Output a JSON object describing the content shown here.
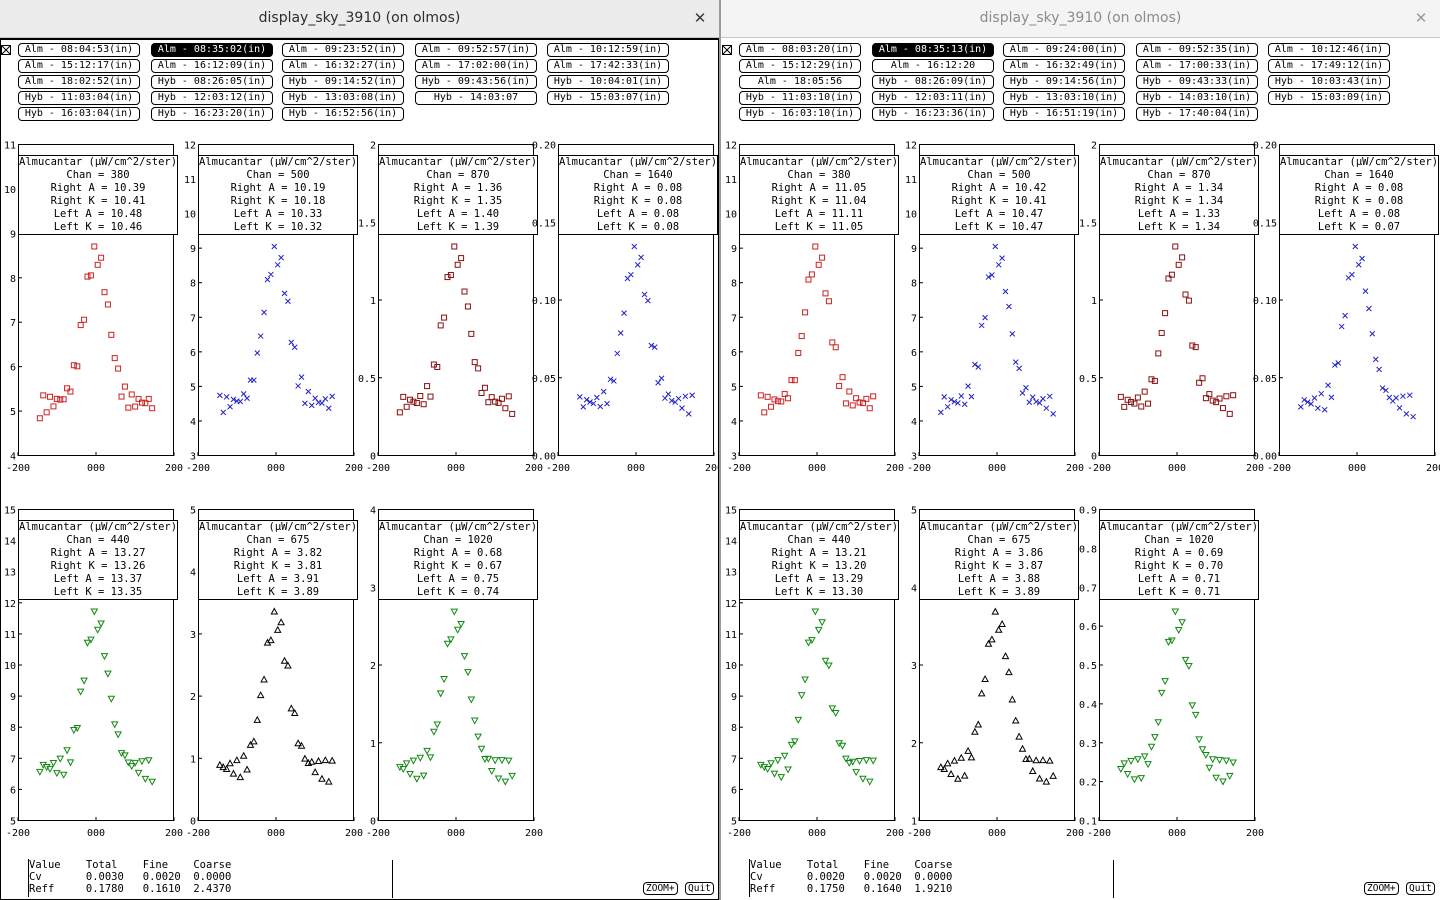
{
  "windows": [
    {
      "id": "left",
      "title": "display_sky_3910 (on olmos)",
      "active": true,
      "buttons": [
        [
          "Alm - 08:04:53(in)",
          "Alm - 08:35:02(in)",
          "Alm - 09:23:52(in)",
          "Alm - 09:52:57(in)",
          "Alm - 10:12:59(in)"
        ],
        [
          "Alm - 15:12:17(in)",
          "Alm - 16:12:09(in)",
          "Alm - 16:32:27(in)",
          "Alm - 17:02:00(in)",
          "Alm - 17:42:33(in)"
        ],
        [
          "Alm - 18:02:52(in)",
          "Hyb - 08:26:05(in)",
          "Hyb - 09:14:52(in)",
          "Hyb - 09:43:56(in)",
          "Hyb - 10:04:01(in)"
        ],
        [
          "Hyb - 11:03:04(in)",
          "Hyb - 12:03:12(in)",
          "Hyb - 13:03:08(in)",
          "Hyb - 14:03:07",
          "Hyb - 15:03:07(in)"
        ],
        [
          "Hyb - 16:03:04(in)",
          "Hyb - 16:23:20(in)",
          "Hyb - 16:52:56(in)"
        ]
      ],
      "selected_button": [
        0,
        1
      ],
      "plots": [
        {
          "legend": {
            "title": "Almucantar (µW/cm^2/ster)",
            "chan": "Chan = 380",
            "ra": "Right A = 10.39",
            "rk": "Right K = 10.41",
            "la": "Left A = 10.48",
            "lk": "Left K = 10.46"
          },
          "ylim": [
            4,
            11
          ],
          "yticks": [
            "4",
            "5",
            "6",
            "7",
            "8",
            "9",
            "10",
            "11"
          ],
          "xticks": [
            "-200",
            "000",
            "200"
          ],
          "color": "#cc2222",
          "marker": "square"
        },
        {
          "legend": {
            "title": "Almucantar (µW/cm^2/ster)",
            "chan": "Chan = 500",
            "ra": "Right A = 10.19",
            "rk": "Right K = 10.18",
            "la": "Left A = 10.33",
            "lk": "Left K = 10.32"
          },
          "ylim": [
            3,
            12
          ],
          "yticks": [
            "3",
            "4",
            "5",
            "6",
            "7",
            "8",
            "9",
            "10",
            "11",
            "12"
          ],
          "xticks": [
            "-200",
            "000",
            "200"
          ],
          "color": "#2222cc",
          "marker": "x"
        },
        {
          "legend": {
            "title": "Almucantar (µW/cm^2/ster)",
            "chan": "Chan = 870",
            "ra": "Right A = 1.36",
            "rk": "Right K = 1.35",
            "la": "Left A = 1.40",
            "lk": "Left K = 1.39"
          },
          "ylim": [
            0,
            2
          ],
          "yticks": [
            "0",
            "0.5",
            "1",
            "1.5",
            "2"
          ],
          "xticks": [
            "-200",
            "000",
            "200"
          ],
          "color": "#881111",
          "marker": "square"
        },
        {
          "legend": {
            "title": "Almucantar (µW/cm^2/ster)",
            "chan": "Chan = 1640",
            "ra": "Right A = 0.08",
            "rk": "Right K = 0.08",
            "la": "Left A = 0.08",
            "lk": "Left K = 0.08"
          },
          "ylim": [
            0,
            0.2
          ],
          "yticks": [
            "0.00",
            "0.05",
            "0.10",
            "0.15",
            "0.20"
          ],
          "xticks": [
            "-200",
            "000",
            "200"
          ],
          "color": "#2222cc",
          "marker": "x"
        },
        {
          "legend": {
            "title": "Almucantar (µW/cm^2/ster)",
            "chan": "Chan = 440",
            "ra": "Right A = 13.27",
            "rk": "Right K = 13.26",
            "la": "Left A = 13.37",
            "lk": "Left K = 13.35"
          },
          "ylim": [
            5,
            15
          ],
          "yticks": [
            "5",
            "6",
            "7",
            "8",
            "9",
            "10",
            "11",
            "12",
            "13",
            "14",
            "15"
          ],
          "xticks": [
            "-200",
            "000",
            "200"
          ],
          "color": "#118811",
          "marker": "triangle-down"
        },
        {
          "legend": {
            "title": "Almucantar (µW/cm^2/ster)",
            "chan": "Chan = 675",
            "ra": "Right A = 3.82",
            "rk": "Right K = 3.81",
            "la": "Left A = 3.91",
            "lk": "Left K = 3.89"
          },
          "ylim": [
            0,
            5
          ],
          "yticks": [
            "0",
            "1",
            "2",
            "3",
            "4",
            "5"
          ],
          "xticks": [
            "-200",
            "000",
            "200"
          ],
          "color": "#000000",
          "marker": "triangle"
        },
        {
          "legend": {
            "title": "Almucantar (µW/cm^2/ster)",
            "chan": "Chan = 1020",
            "ra": "Right A = 0.68",
            "rk": "Right K = 0.67",
            "la": "Left A = 0.75",
            "lk": "Left K = 0.74"
          },
          "ylim": [
            0,
            4
          ],
          "yticks": [
            "0",
            "1",
            "2",
            "3",
            "4"
          ],
          "xticks": [
            "-200",
            "000",
            "200"
          ],
          "color": "#118811",
          "marker": "triangle-down"
        }
      ],
      "status": {
        "header": "Value    Total    Fine    Coarse",
        "cv": "Cv       0.0030   0.0020  0.0000",
        "reff": "Reff     0.1780   0.1610  2.4370"
      },
      "zoom_label": "ZOOM+",
      "quit_label": "Quit"
    },
    {
      "id": "right",
      "title": "display_sky_3910 (on olmos)",
      "active": false,
      "buttons": [
        [
          "Alm - 08:03:20(in)",
          "Alm - 08:35:13(in)",
          "Alm - 09:24:00(in)",
          "Alm - 09:52:35(in)",
          "Alm - 10:12:46(in)"
        ],
        [
          "Alm - 15:12:29(in)",
          "Alm - 16:12:20",
          "Alm - 16:32:49(in)",
          "Alm - 17:00:33(in)",
          "Alm - 17:49:12(in)"
        ],
        [
          "Alm - 18:05:56",
          "Hyb - 08:26:09(in)",
          "Hyb - 09:14:56(in)",
          "Hyb - 09:43:33(in)",
          "Hyb - 10:03:43(in)"
        ],
        [
          "Hyb - 11:03:10(in)",
          "Hyb - 12:03:11(in)",
          "Hyb - 13:03:10(in)",
          "Hyb - 14:03:10(in)",
          "Hyb - 15:03:09(in)"
        ],
        [
          "Hyb - 16:03:10(in)",
          "Hyb - 16:23:36(in)",
          "Hyb - 16:51:19(in)",
          "Hyb - 17:40:04(in)"
        ]
      ],
      "selected_button": [
        0,
        1
      ],
      "plots": [
        {
          "legend": {
            "title": "Almucantar (µW/cm^2/ster)",
            "chan": "Chan = 380",
            "ra": "Right A = 11.05",
            "rk": "Right K = 11.04",
            "la": "Left A = 11.11",
            "lk": "Left K = 11.05"
          },
          "ylim": [
            3,
            12
          ],
          "yticks": [
            "3",
            "4",
            "5",
            "6",
            "7",
            "8",
            "9",
            "10",
            "11",
            "12"
          ],
          "xticks": [
            "-200",
            "000",
            "200"
          ],
          "color": "#cc2222",
          "marker": "square"
        },
        {
          "legend": {
            "title": "Almucantar (µW/cm^2/ster)",
            "chan": "Chan = 500",
            "ra": "Right A = 10.42",
            "rk": "Right K = 10.41",
            "la": "Left A = 10.47",
            "lk": "Left K = 10.47"
          },
          "ylim": [
            3,
            12
          ],
          "yticks": [
            "3",
            "4",
            "5",
            "6",
            "7",
            "8",
            "9",
            "10",
            "11",
            "12"
          ],
          "xticks": [
            "-200",
            "000",
            "200"
          ],
          "color": "#2222cc",
          "marker": "x"
        },
        {
          "legend": {
            "title": "Almucantar (µW/cm^2/ster)",
            "chan": "Chan = 870",
            "ra": "Right A = 1.34",
            "rk": "Right K = 1.34",
            "la": "Left A = 1.33",
            "lk": "Left K = 1.34"
          },
          "ylim": [
            0,
            2
          ],
          "yticks": [
            "0",
            "0.5",
            "1",
            "1.5",
            "2"
          ],
          "xticks": [
            "-200",
            "000",
            "200"
          ],
          "color": "#881111",
          "marker": "square"
        },
        {
          "legend": {
            "title": "Almucantar (µW/cm^2/ster)",
            "chan": "Chan = 1640",
            "ra": "Right A = 0.08",
            "rk": "Right K = 0.08",
            "la": "Left A = 0.08",
            "lk": "Left K = 0.07"
          },
          "ylim": [
            0,
            0.2
          ],
          "yticks": [
            "0.00",
            "0.05",
            "0.10",
            "0.15",
            "0.20"
          ],
          "xticks": [
            "-200",
            "000",
            "200"
          ],
          "color": "#2222cc",
          "marker": "x"
        },
        {
          "legend": {
            "title": "Almucantar (µW/cm^2/ster)",
            "chan": "Chan = 440",
            "ra": "Right A = 13.21",
            "rk": "Right K = 13.20",
            "la": "Left A = 13.29",
            "lk": "Left K = 13.30"
          },
          "ylim": [
            5,
            15
          ],
          "yticks": [
            "5",
            "6",
            "7",
            "8",
            "9",
            "10",
            "11",
            "12",
            "13",
            "14",
            "15"
          ],
          "xticks": [
            "-200",
            "000",
            "200"
          ],
          "color": "#118811",
          "marker": "triangle-down"
        },
        {
          "legend": {
            "title": "Almucantar (µW/cm^2/ster)",
            "chan": "Chan = 675",
            "ra": "Right A = 3.86",
            "rk": "Right K = 3.87",
            "la": "Left A = 3.88",
            "lk": "Left K = 3.89"
          },
          "ylim": [
            1,
            5
          ],
          "yticks": [
            "1",
            "2",
            "3",
            "4",
            "5"
          ],
          "xticks": [
            "-200",
            "000",
            "200"
          ],
          "color": "#000000",
          "marker": "triangle"
        },
        {
          "legend": {
            "title": "Almucantar (µW/cm^2/ster)",
            "chan": "Chan = 1020",
            "ra": "Right A = 0.69",
            "rk": "Right K = 0.70",
            "la": "Left A = 0.71",
            "lk": "Left K = 0.71"
          },
          "ylim": [
            0.1,
            0.9
          ],
          "yticks": [
            "0.1",
            "0.2",
            "0.3",
            "0.4",
            "0.5",
            "0.6",
            "0.7",
            "0.8",
            "0.9"
          ],
          "xticks": [
            "-200",
            "000",
            "200"
          ],
          "color": "#118811",
          "marker": "triangle-down"
        }
      ],
      "status": {
        "header": "Value    Total    Fine    Coarse",
        "cv": "Cv       0.0020   0.0020  0.0000",
        "reff": "Reff     0.1750   0.1640  1.9210"
      },
      "zoom_label": "ZOOM+",
      "quit_label": "Quit"
    }
  ]
}
